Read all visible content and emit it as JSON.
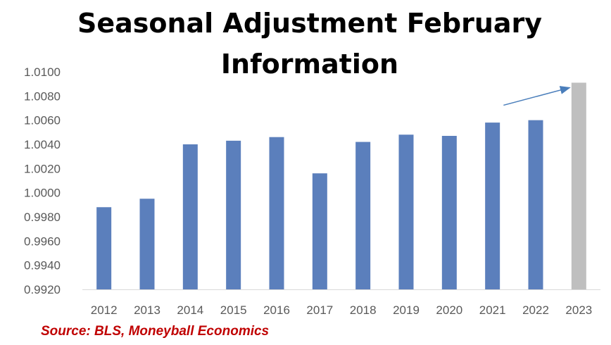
{
  "chart_data": {
    "type": "bar",
    "title": [
      "Seasonal Adjustment February",
      "Information"
    ],
    "categories": [
      "2012",
      "2013",
      "2014",
      "2015",
      "2016",
      "2017",
      "2018",
      "2019",
      "2020",
      "2021",
      "2022",
      "2023"
    ],
    "values": [
      0.9988,
      0.9995,
      1.004,
      1.0043,
      1.0046,
      1.0016,
      1.0042,
      1.0048,
      1.0047,
      1.0058,
      1.006,
      1.0091
    ],
    "ylim": [
      0.992,
      1.01
    ],
    "yticks": [
      "0.9920",
      "0.9940",
      "0.9960",
      "0.9980",
      "1.0000",
      "1.0020",
      "1.0040",
      "1.0060",
      "1.0080",
      "1.0100"
    ],
    "colors": {
      "bar": "#5b7fbc",
      "highlight": "#bfbfbf",
      "arrow": "#4a7ebb",
      "axis": "#d9d9d9",
      "source": "#c00000"
    },
    "highlight_category": "2023",
    "grid": false,
    "annotation": "arrow pointing to 2023 bar",
    "source": "Source: BLS, Moneyball Economics"
  }
}
